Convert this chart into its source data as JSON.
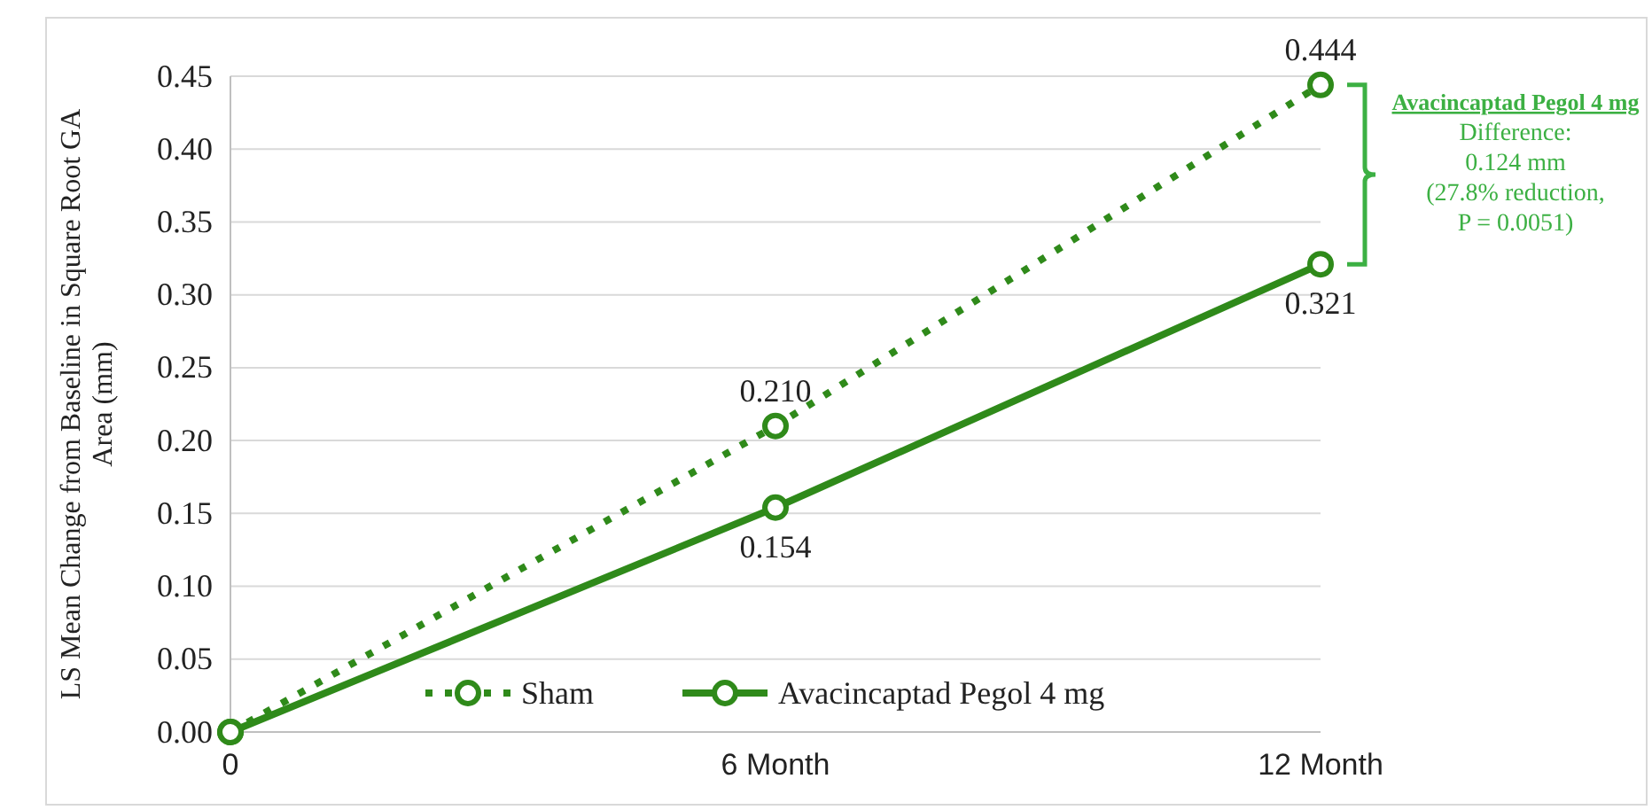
{
  "chart_data": {
    "type": "line",
    "ylabel": "LS Mean Change from Baseline  in Square Root GA Area (mm)",
    "categories": [
      "0",
      "6 Month",
      "12 Month"
    ],
    "series": [
      {
        "name": "Sham",
        "color": "#2f8a1a",
        "values": [
          0,
          0.21,
          0.444
        ],
        "line_style": "dotted",
        "value_labels": [
          null,
          "0.210",
          "0.444"
        ]
      },
      {
        "name": "Avacincaptad Pegol 4 mg",
        "color": "#2f8a1a",
        "values": [
          0,
          0.154,
          0.321
        ],
        "line_style": "solid",
        "value_labels": [
          null,
          "0.154",
          "0.321"
        ]
      }
    ],
    "ylim": [
      0,
      0.45
    ],
    "yticks": [
      {
        "value": 0,
        "label": "0.00"
      },
      {
        "value": 0.05,
        "label": "0.05"
      },
      {
        "value": 0.1,
        "label": "0.10"
      },
      {
        "value": 0.15,
        "label": "0.15"
      },
      {
        "value": 0.2,
        "label": "0.20"
      },
      {
        "value": 0.25,
        "label": "0.25"
      },
      {
        "value": 0.3,
        "label": "0.30"
      },
      {
        "value": 0.35,
        "label": "0.35"
      },
      {
        "value": 0.4,
        "label": "0.40"
      },
      {
        "value": 0.45,
        "label": "0.45"
      }
    ],
    "grid": "y",
    "legend": "bottom",
    "marker": "circle",
    "annotations": [
      "Avacincaptad Pegol 4 mg",
      "Difference:",
      "0.124 mm",
      "(27.8% reduction,",
      "P = 0.0051)"
    ]
  }
}
